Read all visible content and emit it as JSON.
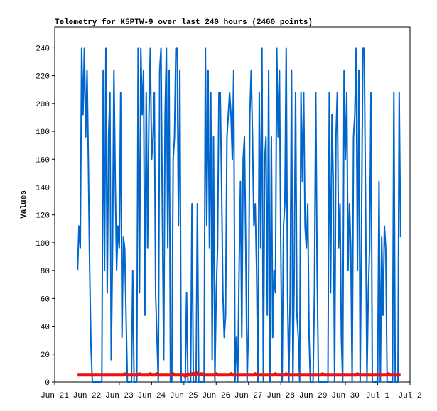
{
  "chart_data": {
    "type": "line",
    "title": "Telemetry for K5PTW-9 over last 240 hours (2460 points)",
    "y_label": "Values",
    "xlim": [
      0,
      264
    ],
    "xticks": [
      {
        "value": 0,
        "label": "Jun 21"
      },
      {
        "value": 24,
        "label": "Jun 22"
      },
      {
        "value": 48,
        "label": "Jun 23"
      },
      {
        "value": 72,
        "label": "Jun 24"
      },
      {
        "value": 96,
        "label": "Jun 25"
      },
      {
        "value": 120,
        "label": "Jun 26"
      },
      {
        "value": 144,
        "label": "Jun 27"
      },
      {
        "value": 168,
        "label": "Jun 28"
      },
      {
        "value": 192,
        "label": "Jun 29"
      },
      {
        "value": 216,
        "label": "Jun 30"
      },
      {
        "value": 240,
        "label": "Jul 1"
      },
      {
        "value": 264,
        "label": "Jul 2"
      }
    ],
    "ylim": [
      0,
      255
    ],
    "yticks": [
      0,
      20,
      40,
      60,
      80,
      100,
      120,
      140,
      160,
      180,
      200,
      220,
      240
    ],
    "x": [
      17,
      18,
      19,
      20,
      21,
      22,
      23,
      24,
      25,
      26,
      27,
      28,
      29,
      30,
      31,
      32,
      33,
      34,
      35,
      36,
      37,
      38,
      39,
      40,
      41,
      42,
      43,
      44,
      45,
      46,
      47,
      48,
      49,
      50,
      51,
      52,
      53,
      54,
      55,
      56,
      57,
      58,
      59,
      60,
      61,
      62,
      63,
      64,
      65,
      66,
      67,
      68,
      69,
      70,
      71,
      72,
      73,
      74,
      75,
      76,
      77,
      78,
      79,
      80,
      81,
      82,
      83,
      84,
      85,
      86,
      87,
      88,
      89,
      90,
      91,
      92,
      93,
      94,
      95,
      96,
      97,
      98,
      99,
      100,
      101,
      102,
      103,
      104,
      105,
      106,
      107,
      108,
      109,
      110,
      111,
      112,
      113,
      114,
      115,
      116,
      117,
      118,
      119,
      120,
      121,
      122,
      123,
      124,
      125,
      126,
      127,
      128,
      129,
      130,
      131,
      132,
      133,
      134,
      135,
      136,
      137,
      138,
      139,
      140,
      141,
      142,
      143,
      144,
      145,
      146,
      147,
      148,
      149,
      150,
      151,
      152,
      153,
      154,
      155,
      156,
      157,
      158,
      159,
      160,
      161,
      162,
      163,
      164,
      165,
      166,
      167,
      168,
      169,
      170,
      171,
      172,
      173,
      174,
      175,
      176,
      177,
      178,
      179,
      180,
      181,
      182,
      183,
      184,
      185,
      186,
      187,
      188,
      189,
      190,
      191,
      192,
      193,
      194,
      195,
      196,
      197,
      198,
      199,
      200,
      201,
      202,
      203,
      204,
      205,
      206,
      207,
      208,
      209,
      210,
      211,
      212,
      213,
      214,
      215,
      216,
      217,
      218,
      219,
      220,
      221,
      222,
      223,
      224,
      225,
      226,
      227,
      228,
      229,
      230,
      231,
      232,
      233,
      234,
      235,
      236,
      237,
      238,
      239,
      240,
      241,
      242,
      243,
      244,
      245,
      246,
      247,
      248,
      249,
      250,
      251,
      252,
      253,
      254,
      255,
      256,
      257
    ],
    "series": [
      {
        "color": "#0066cc",
        "values": [
          80,
          112,
          96,
          240,
          192,
          240,
          176,
          224,
          160,
          80,
          24,
          0,
          0,
          0,
          0,
          0,
          0,
          0,
          0,
          224,
          80,
          240,
          64,
          176,
          208,
          16,
          96,
          224,
          144,
          80,
          112,
          96,
          208,
          32,
          104,
          96,
          48,
          0,
          0,
          0,
          0,
          80,
          0,
          0,
          0,
          240,
          64,
          240,
          192,
          224,
          48,
          208,
          96,
          192,
          240,
          160,
          176,
          208,
          64,
          32,
          0,
          224,
          240,
          120,
          16,
          192,
          240,
          96,
          224,
          0,
          0,
          160,
          176,
          240,
          240,
          112,
          224,
          0,
          0,
          0,
          0,
          64,
          0,
          0,
          0,
          128,
          0,
          0,
          0,
          128,
          0,
          0,
          0,
          0,
          0,
          240,
          112,
          224,
          96,
          208,
          16,
          176,
          0,
          64,
          96,
          208,
          208,
          144,
          64,
          32,
          48,
          176,
          192,
          208,
          192,
          160,
          224,
          0,
          32,
          0,
          80,
          144,
          32,
          160,
          176,
          96,
          0,
          40,
          192,
          224,
          176,
          112,
          128,
          80,
          0,
          208,
          96,
          240,
          0,
          160,
          176,
          48,
          224,
          0,
          176,
          32,
          80,
          64,
          240,
          176,
          224,
          96,
          0,
          112,
          128,
          240,
          64,
          0,
          64,
          224,
          0,
          80,
          208,
          48,
          32,
          0,
          208,
          144,
          208,
          112,
          96,
          128,
          32,
          0,
          0,
          0,
          64,
          208,
          80,
          0,
          0,
          0,
          0,
          0,
          0,
          0,
          0,
          208,
          64,
          192,
          144,
          0,
          176,
          208,
          96,
          128,
          32,
          0,
          224,
          160,
          208,
          80,
          128,
          96,
          0,
          176,
          192,
          240,
          80,
          224,
          0,
          112,
          240,
          240,
          128,
          0,
          64,
          96,
          208,
          0,
          0,
          0,
          0,
          0,
          144,
          0,
          104,
          48,
          112,
          96,
          0,
          0,
          0,
          0,
          0,
          208,
          0,
          0,
          0,
          208,
          104
        ]
      },
      {
        "color": "#ee1111",
        "values": [
          5,
          5,
          5,
          5,
          5,
          5,
          5,
          5,
          5,
          5,
          5,
          5,
          5,
          5,
          5,
          5,
          5,
          5,
          5,
          5,
          5,
          5,
          5,
          5,
          5,
          5,
          5,
          5,
          5,
          5,
          5,
          5,
          5,
          5,
          5,
          6,
          5,
          5,
          5,
          5,
          5,
          5,
          5,
          5,
          5,
          5,
          6,
          5,
          5,
          5,
          5,
          5,
          5,
          5,
          6,
          5,
          5,
          5,
          5,
          6,
          5,
          5,
          5,
          5,
          5,
          5,
          5,
          5,
          5,
          5,
          5,
          6,
          5,
          5,
          5,
          5,
          5,
          5,
          5,
          5,
          4,
          5,
          6,
          5,
          5,
          6,
          5,
          6,
          7,
          6,
          5,
          5,
          6,
          5,
          5,
          5,
          5,
          5,
          5,
          5,
          5,
          5,
          5,
          6,
          5,
          5,
          5,
          5,
          5,
          5,
          5,
          5,
          5,
          5,
          6,
          5,
          5,
          5,
          5,
          5,
          5,
          5,
          5,
          5,
          5,
          5,
          5,
          5,
          5,
          5,
          5,
          5,
          6,
          5,
          5,
          5,
          5,
          5,
          5,
          5,
          5,
          5,
          5,
          5,
          5,
          5,
          5,
          6,
          5,
          5,
          5,
          5,
          5,
          5,
          5,
          6,
          5,
          5,
          5,
          5,
          5,
          5,
          5,
          5,
          5,
          5,
          5,
          5,
          5,
          5,
          5,
          5,
          5,
          5,
          5,
          5,
          5,
          5,
          5,
          5,
          5,
          5,
          6,
          5,
          5,
          5,
          5,
          5,
          5,
          5,
          5,
          5,
          5,
          5,
          5,
          5,
          5,
          5,
          5,
          5,
          5,
          5,
          5,
          5,
          5,
          5,
          5,
          5,
          6,
          5,
          5,
          5,
          5,
          5,
          5,
          5,
          5,
          5,
          5,
          5,
          5,
          5,
          5,
          5,
          5,
          5,
          5,
          5,
          5,
          5,
          5,
          6,
          5,
          5,
          5,
          5,
          5,
          5,
          5,
          5,
          5
        ]
      }
    ]
  }
}
